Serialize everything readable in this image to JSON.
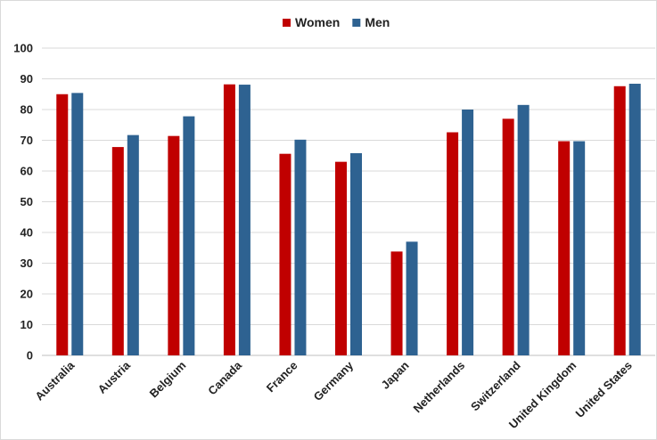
{
  "chart_data": {
    "type": "bar",
    "title": "",
    "xlabel": "",
    "ylabel": "",
    "ylim": [
      0,
      100
    ],
    "yticks": [
      0,
      10,
      20,
      30,
      40,
      50,
      60,
      70,
      80,
      90,
      100
    ],
    "grid": true,
    "legend_position": "top-center",
    "categories": [
      "Australia",
      "Austria",
      "Belgium",
      "Canada",
      "France",
      "Germany",
      "Japan",
      "Netherlands",
      "Switzerland",
      "United Kingdom",
      "United States"
    ],
    "series": [
      {
        "name": "Women",
        "color": "#c00000",
        "values": [
          85.0,
          67.8,
          71.4,
          88.2,
          65.6,
          63.0,
          33.8,
          72.6,
          77.0,
          69.7,
          87.6
        ]
      },
      {
        "name": "Men",
        "color": "#2e6291",
        "values": [
          85.4,
          71.7,
          77.8,
          88.1,
          70.2,
          65.8,
          37.0,
          80.0,
          81.5,
          69.7,
          88.4
        ]
      }
    ]
  }
}
